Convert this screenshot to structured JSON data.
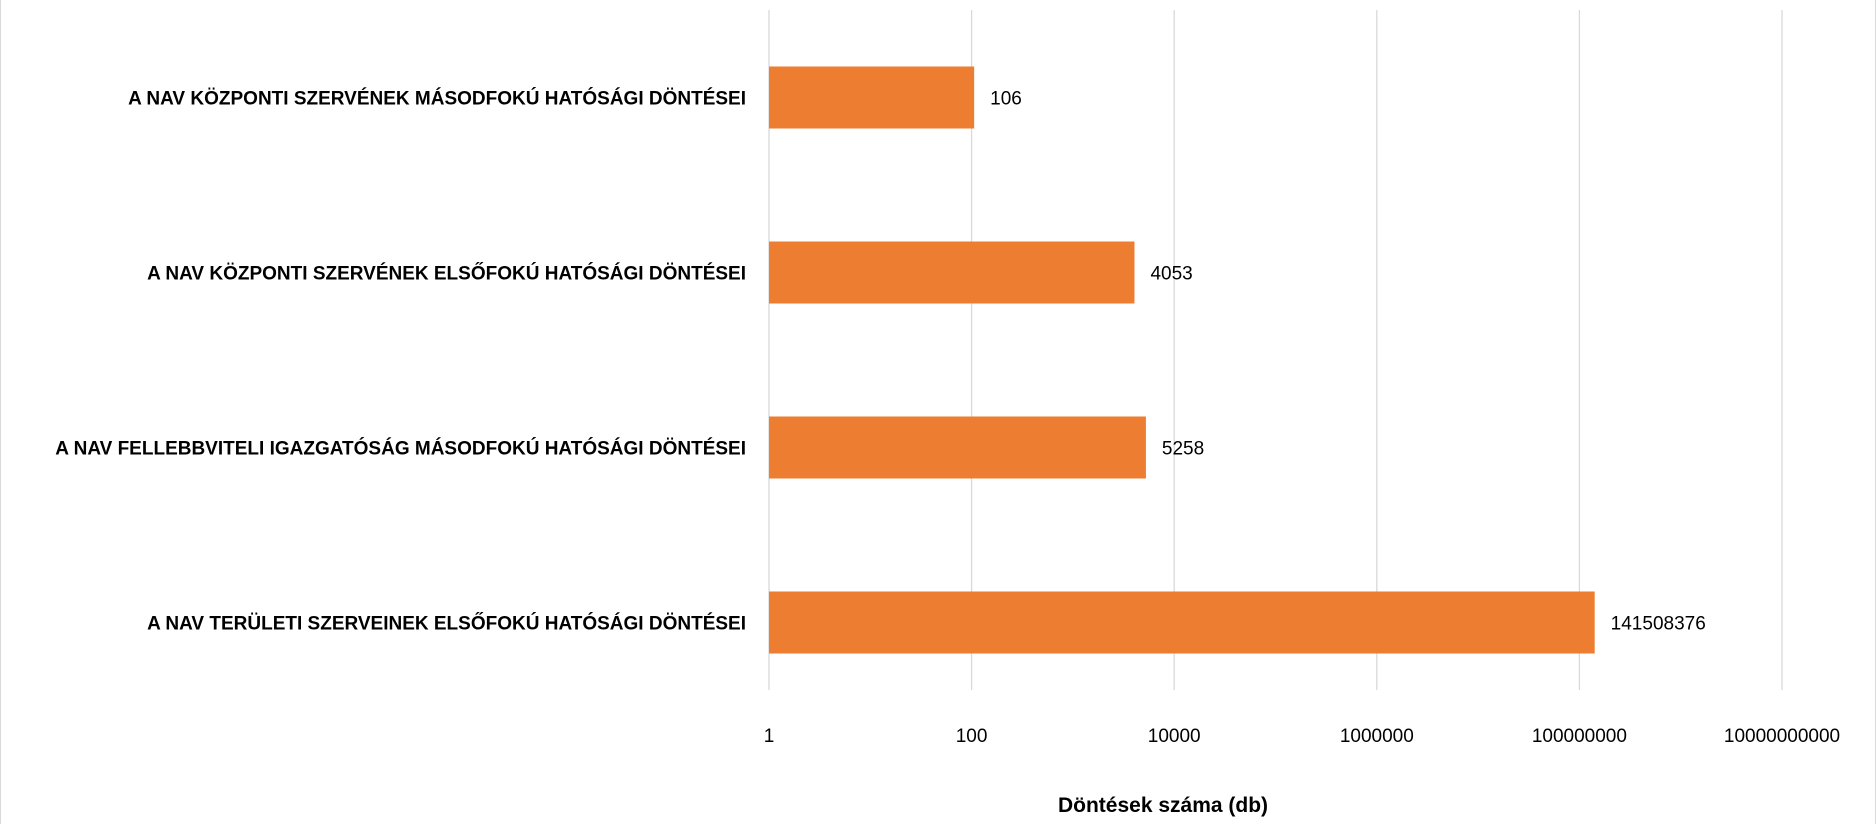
{
  "chart_data": {
    "type": "bar",
    "orientation": "horizontal",
    "scale": "log",
    "categories": [
      "A NAV KÖZPONTI SZERVÉNEK MÁSODFOKÚ HATÓSÁGI DÖNTÉSEI",
      "A NAV KÖZPONTI SZERVÉNEK ELSŐFOKÚ HATÓSÁGI DÖNTÉSEI",
      "A NAV FELLEBBVITELI IGAZGATÓSÁG MÁSODFOKÚ HATÓSÁGI DÖNTÉSEI",
      "A NAV TERÜLETI SZERVEINEK ELSŐFOKÚ HATÓSÁGI DÖNTÉSEI"
    ],
    "values": [
      106,
      4053,
      5258,
      141508376
    ],
    "data_labels": [
      "106",
      "4053",
      "5258",
      "141508376"
    ],
    "xticks": [
      "1",
      "100",
      "10000",
      "1000000",
      "100000000",
      "10000000000"
    ],
    "xlim": [
      1,
      10000000000
    ],
    "xlabel": "Döntések száma (db)",
    "ylabel": "",
    "title": "",
    "grid": true,
    "legend": "none",
    "bar_color": "#ED7D31",
    "grid_color": "#D9D9D9"
  }
}
